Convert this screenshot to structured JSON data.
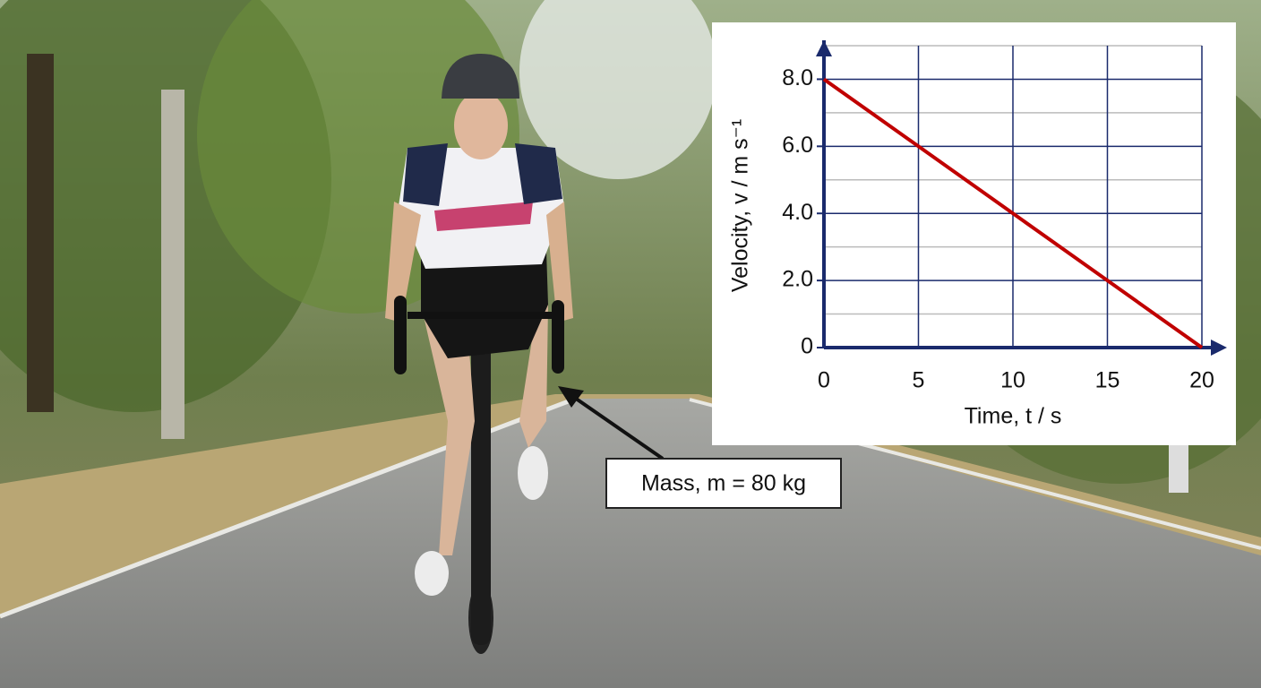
{
  "chart_data": {
    "type": "line",
    "xlabel": "Time, t / s",
    "ylabel": "Velocity, v / m s⁻¹",
    "x": [
      0,
      20
    ],
    "series": [
      {
        "color": "#c00000",
        "values": [
          8,
          0
        ]
      }
    ],
    "xlim": [
      0,
      20
    ],
    "xticks": [
      0,
      5,
      10,
      15,
      20
    ],
    "ylim": [
      0,
      9
    ],
    "yticks": [
      0,
      {
        "value": 2,
        "label": "2.0"
      },
      {
        "value": 4,
        "label": "4.0"
      },
      {
        "value": 6,
        "label": "6.0"
      },
      {
        "value": 8,
        "label": "8.0"
      }
    ],
    "minor_ygrid": [
      1,
      3,
      5,
      7,
      9
    ],
    "grid": true,
    "axis_color": "#1a2a6c"
  },
  "annotation": "Mass, m = 80 kg"
}
